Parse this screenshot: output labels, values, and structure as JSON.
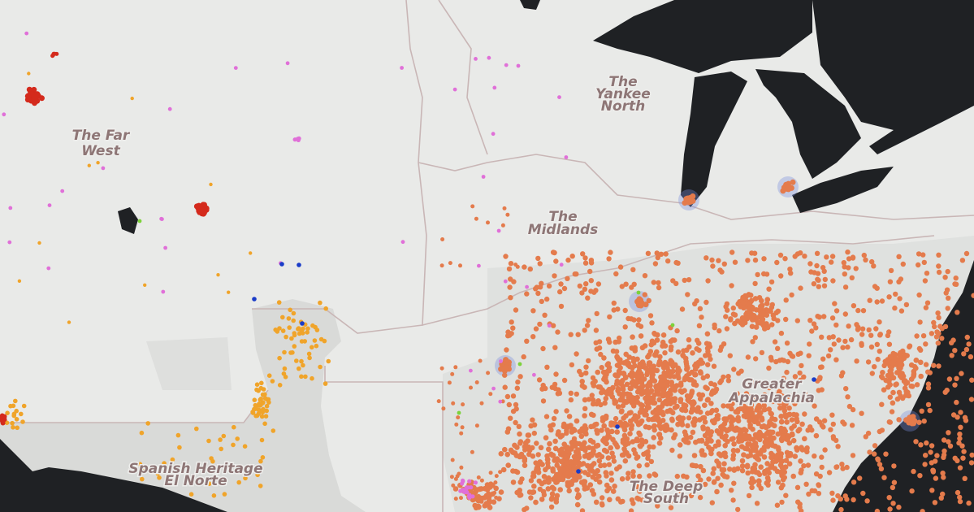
{
  "regions": [
    {
      "lines": [
        "The Far",
        "West"
      ]
    },
    {
      "lines": [
        "The",
        "Yankee",
        "North"
      ]
    },
    {
      "lines": [
        "The",
        "Midlands"
      ]
    },
    {
      "lines": [
        "Greater",
        "Appalachia"
      ]
    },
    {
      "lines": [
        "Spanish Heritage",
        "El Norte"
      ]
    },
    {
      "lines": [
        "The Deep",
        "South"
      ]
    }
  ]
}
